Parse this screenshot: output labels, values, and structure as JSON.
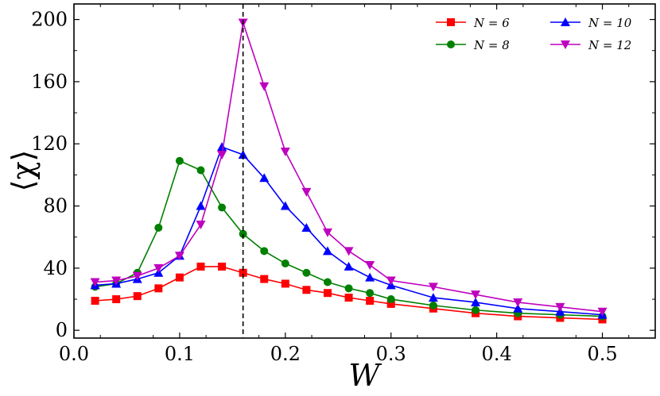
{
  "chart_data": {
    "type": "line",
    "title": "",
    "xlabel": "W",
    "ylabel": "⟨χ⟩",
    "xlim": [
      0.0,
      0.55
    ],
    "ylim": [
      -5,
      210
    ],
    "xticks": [
      0.0,
      0.1,
      0.2,
      0.3,
      0.4,
      0.5
    ],
    "xtick_labels": [
      "0.0",
      "0.1",
      "0.2",
      "0.3",
      "0.4",
      "0.5"
    ],
    "yticks": [
      0,
      40,
      80,
      120,
      160,
      200
    ],
    "ytick_labels": [
      "0",
      "40",
      "80",
      "120",
      "160",
      "200"
    ],
    "grid": false,
    "legend_position": "top-right",
    "reference_line": {
      "x": 0.16,
      "style": "dashed",
      "color": "#000000"
    },
    "series": [
      {
        "name": "N = 6",
        "color": "#ff0000",
        "marker": "square",
        "x": [
          0.02,
          0.04,
          0.06,
          0.08,
          0.1,
          0.12,
          0.14,
          0.16,
          0.18,
          0.2,
          0.22,
          0.24,
          0.26,
          0.28,
          0.3,
          0.34,
          0.38,
          0.42,
          0.46,
          0.5
        ],
        "y": [
          19,
          20,
          22,
          27,
          34,
          41,
          41,
          37,
          33,
          30,
          26,
          24,
          21,
          19,
          17,
          14,
          11,
          9,
          8,
          7
        ]
      },
      {
        "name": "N = 8",
        "color": "#008000",
        "marker": "circle",
        "x": [
          0.02,
          0.04,
          0.06,
          0.08,
          0.1,
          0.12,
          0.14,
          0.16,
          0.18,
          0.2,
          0.22,
          0.24,
          0.26,
          0.28,
          0.3,
          0.34,
          0.38,
          0.42,
          0.46,
          0.5
        ],
        "y": [
          28,
          30,
          37,
          66,
          109,
          103,
          79,
          62,
          51,
          43,
          37,
          31,
          27,
          24,
          20,
          16,
          13,
          11,
          10,
          9
        ]
      },
      {
        "name": "N = 10",
        "color": "#0000ff",
        "marker": "triangle-up",
        "x": [
          0.02,
          0.04,
          0.06,
          0.08,
          0.1,
          0.12,
          0.14,
          0.16,
          0.18,
          0.2,
          0.22,
          0.24,
          0.26,
          0.28,
          0.3,
          0.34,
          0.38,
          0.42,
          0.46,
          0.5
        ],
        "y": [
          29,
          30,
          33,
          37,
          48,
          80,
          118,
          113,
          98,
          80,
          66,
          51,
          41,
          34,
          29,
          21,
          18,
          14,
          12,
          10
        ]
      },
      {
        "name": "N = 12",
        "color": "#bf00bf",
        "marker": "triangle-down",
        "x": [
          0.02,
          0.04,
          0.06,
          0.08,
          0.1,
          0.12,
          0.14,
          0.16,
          0.18,
          0.2,
          0.22,
          0.24,
          0.26,
          0.28,
          0.3,
          0.34,
          0.38,
          0.42,
          0.46,
          0.5
        ],
        "y": [
          31,
          32,
          35,
          40,
          48,
          68,
          113,
          198,
          157,
          115,
          89,
          63,
          51,
          42,
          32,
          28,
          23,
          18,
          15,
          12
        ]
      }
    ]
  }
}
